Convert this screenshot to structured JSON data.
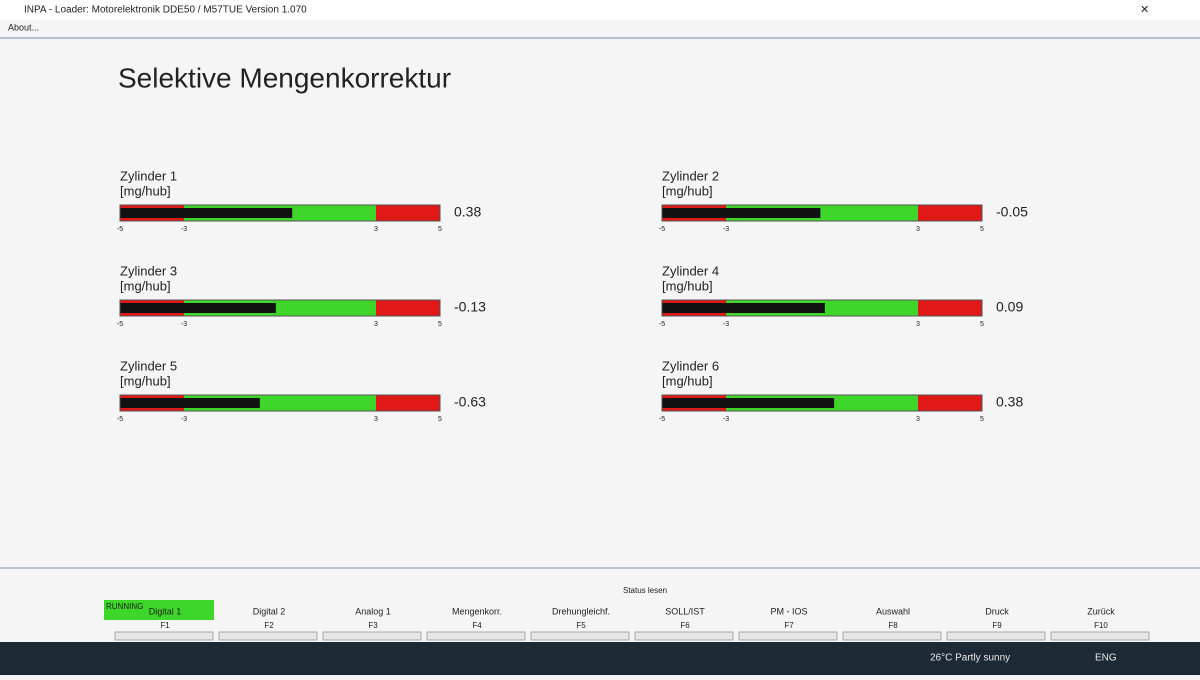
{
  "window": {
    "title": "INPA - Loader: Motorelektronik DDE50 / M57TUE Version 1.070",
    "menu": "About..."
  },
  "header": {
    "title": "Selektive Mengenkorrektur"
  },
  "scale": {
    "min": -5,
    "max": 5,
    "ticks": [
      -5,
      -3,
      3,
      5
    ]
  },
  "gauges": [
    {
      "label": "Zylinder 1",
      "unit": "[mg/hub]",
      "value": 0.38
    },
    {
      "label": "Zylinder 2",
      "unit": "[mg/hub]",
      "value": -0.05
    },
    {
      "label": "Zylinder 3",
      "unit": "[mg/hub]",
      "value": -0.13
    },
    {
      "label": "Zylinder 4",
      "unit": "[mg/hub]",
      "value": 0.09
    },
    {
      "label": "Zylinder 5",
      "unit": "[mg/hub]",
      "value": -0.63
    },
    {
      "label": "Zylinder 6",
      "unit": "[mg/hub]",
      "value": 0.38
    }
  ],
  "status": "RUNNING",
  "toolbar_caption": "Status lesen",
  "function_keys": [
    {
      "key": "F1",
      "label": "Digital 1"
    },
    {
      "key": "F2",
      "label": "Digital 2"
    },
    {
      "key": "F3",
      "label": "Analog 1"
    },
    {
      "key": "F4",
      "label": "Mengenkorr."
    },
    {
      "key": "F5",
      "label": "Drehungleichf."
    },
    {
      "key": "F6",
      "label": "SOLL/IST"
    },
    {
      "key": "F7",
      "label": "PM - IOS"
    },
    {
      "key": "F8",
      "label": "Auswahl"
    },
    {
      "key": "F9",
      "label": "Druck"
    },
    {
      "key": "F10",
      "label": "Zurück"
    }
  ],
  "taskbar": {
    "weather": "26°C  Partly sunny",
    "language": "ENG"
  }
}
